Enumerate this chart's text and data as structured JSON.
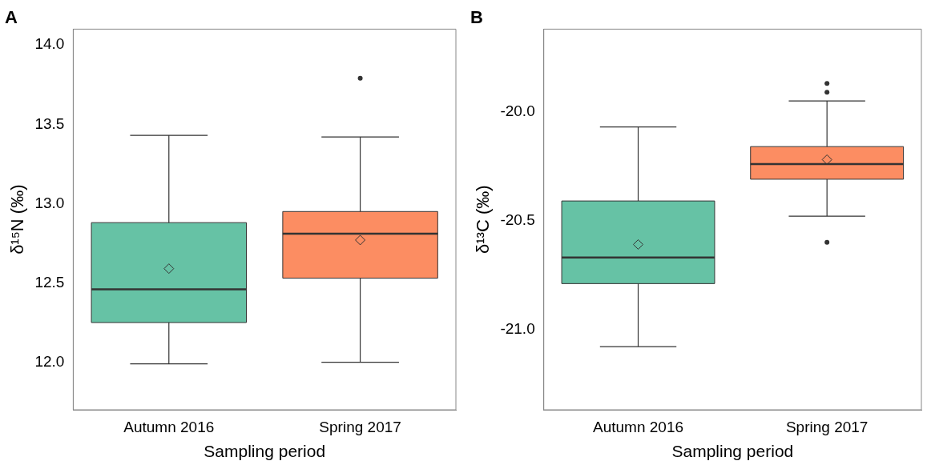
{
  "chart_data": [
    {
      "type": "box",
      "title": "A",
      "xlabel": "Sampling period",
      "ylabel": "δ¹⁵N (‰)",
      "categories": [
        "Autumn 2016",
        "Spring 2017"
      ],
      "colors": [
        "#66c2a5",
        "#fc8d62"
      ],
      "boxes": [
        {
          "low": 11.99,
          "q1": 12.25,
          "median": 12.46,
          "q3": 12.88,
          "high": 13.43,
          "mean": 12.59
        },
        {
          "low": 12.0,
          "q1": 12.53,
          "median": 12.81,
          "q3": 12.95,
          "high": 13.42,
          "mean": 12.77,
          "outliers": [
            13.79
          ]
        }
      ],
      "ylim": [
        11.7,
        14.1
      ],
      "yticks": [
        {
          "value": 12,
          "label": "12.0"
        },
        12.5,
        {
          "value": 13,
          "label": "13.0"
        },
        13.5,
        {
          "value": 14,
          "label": "14.0"
        }
      ],
      "grid": false,
      "legend": false
    },
    {
      "type": "box",
      "title": "B",
      "xlabel": "Sampling period",
      "ylabel": "δ¹³C (‰)",
      "categories": [
        "Autumn 2016",
        "Spring 2017"
      ],
      "colors": [
        "#66c2a5",
        "#fc8d62"
      ],
      "boxes": [
        {
          "low": -21.08,
          "q1": -20.79,
          "median": -20.67,
          "q3": -20.41,
          "high": -20.07,
          "mean": -20.61
        },
        {
          "low": -20.48,
          "q1": -20.31,
          "median": -20.24,
          "q3": -20.16,
          "high": -19.95,
          "mean": -20.22,
          "outliers": [
            -19.87,
            -19.91,
            -20.6
          ]
        }
      ],
      "ylim": [
        -21.37,
        -19.62
      ],
      "yticks": [
        {
          "value": -21,
          "label": "-21.0"
        },
        -20.5,
        {
          "value": -20,
          "label": "-20.0"
        }
      ],
      "grid": false,
      "legend": false
    }
  ]
}
